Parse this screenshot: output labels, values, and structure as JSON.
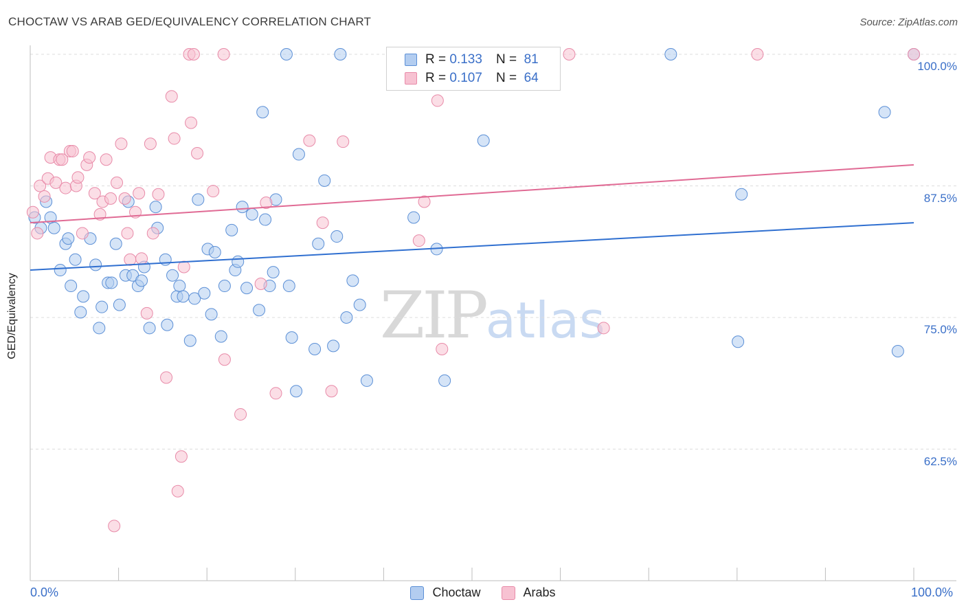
{
  "header": {
    "title": "CHOCTAW VS ARAB GED/EQUIVALENCY CORRELATION CHART",
    "source": "Source: ZipAtlas.com"
  },
  "watermark": {
    "zip": "ZIP",
    "atlas": "atlas"
  },
  "legend": {
    "rows": [
      {
        "r_label": "R =",
        "r_value": "0.133",
        "n_label": "N =",
        "n_value": "81"
      },
      {
        "r_label": "R =",
        "r_value": "0.107",
        "n_label": "N =",
        "n_value": "64"
      }
    ]
  },
  "colors": {
    "choctaw_fill": "#b3cdf0",
    "choctaw_stroke": "#5b8fd6",
    "choctaw_line": "#2f6fd0",
    "arabs_fill": "#f7c2d2",
    "arabs_stroke": "#e88aa8",
    "arabs_line": "#e06a94",
    "tick_text": "#3a6fc8",
    "grid": "#dcdcdc"
  },
  "chart_data": {
    "type": "scatter",
    "title": "CHOCTAW VS ARAB GED/EQUIVALENCY CORRELATION CHART",
    "xlabel": "",
    "ylabel": "GED/Equivalency",
    "xlim": [
      0,
      100
    ],
    "ylim": [
      50,
      102
    ],
    "x_tick_labels": [
      "0.0%",
      "100.0%"
    ],
    "y_ticks": [
      62.5,
      75.0,
      87.5,
      100.0
    ],
    "y_tick_labels": [
      "62.5%",
      "75.0%",
      "87.5%",
      "100.0%"
    ],
    "grid": true,
    "legend_position": "top-center",
    "series": [
      {
        "name": "Choctaw",
        "trend": {
          "x": [
            0,
            100
          ],
          "y": [
            79.5,
            84.0
          ]
        },
        "points": [
          [
            0.5,
            84.5
          ],
          [
            1.2,
            83.5
          ],
          [
            1.8,
            86.0
          ],
          [
            2.3,
            84.5
          ],
          [
            2.7,
            83.5
          ],
          [
            3.4,
            79.5
          ],
          [
            4.0,
            82.0
          ],
          [
            4.3,
            82.5
          ],
          [
            4.6,
            78.0
          ],
          [
            5.1,
            80.5
          ],
          [
            5.7,
            75.5
          ],
          [
            6.0,
            77.0
          ],
          [
            6.8,
            82.5
          ],
          [
            7.4,
            80.0
          ],
          [
            7.8,
            74.0
          ],
          [
            8.1,
            76.0
          ],
          [
            8.8,
            78.3
          ],
          [
            9.2,
            78.3
          ],
          [
            9.7,
            82.0
          ],
          [
            10.1,
            76.2
          ],
          [
            10.8,
            79.0
          ],
          [
            11.1,
            86.0
          ],
          [
            11.6,
            79.0
          ],
          [
            12.2,
            78.0
          ],
          [
            12.6,
            78.5
          ],
          [
            12.9,
            79.8
          ],
          [
            13.5,
            74.0
          ],
          [
            14.2,
            85.5
          ],
          [
            14.4,
            83.5
          ],
          [
            15.3,
            80.5
          ],
          [
            15.5,
            74.3
          ],
          [
            16.1,
            79.0
          ],
          [
            16.6,
            77.0
          ],
          [
            16.9,
            78.0
          ],
          [
            17.3,
            77.0
          ],
          [
            18.1,
            72.8
          ],
          [
            18.6,
            76.8
          ],
          [
            19.0,
            86.2
          ],
          [
            19.7,
            77.3
          ],
          [
            20.1,
            81.5
          ],
          [
            20.5,
            75.3
          ],
          [
            20.9,
            81.2
          ],
          [
            21.6,
            73.2
          ],
          [
            22.0,
            78.0
          ],
          [
            22.8,
            83.3
          ],
          [
            23.2,
            79.5
          ],
          [
            23.5,
            80.3
          ],
          [
            24.0,
            85.5
          ],
          [
            24.5,
            77.8
          ],
          [
            25.1,
            84.8
          ],
          [
            25.9,
            75.7
          ],
          [
            26.3,
            94.5
          ],
          [
            26.6,
            84.3
          ],
          [
            27.1,
            78.0
          ],
          [
            27.5,
            79.3
          ],
          [
            27.8,
            86.2
          ],
          [
            29.0,
            100.0
          ],
          [
            29.3,
            78.0
          ],
          [
            29.6,
            73.1
          ],
          [
            30.1,
            68.0
          ],
          [
            30.4,
            90.5
          ],
          [
            32.2,
            72.0
          ],
          [
            32.6,
            82.0
          ],
          [
            33.3,
            88.0
          ],
          [
            34.3,
            72.3
          ],
          [
            34.7,
            82.7
          ],
          [
            35.1,
            100.0
          ],
          [
            35.8,
            75.0
          ],
          [
            36.5,
            78.5
          ],
          [
            37.3,
            76.2
          ],
          [
            38.1,
            69.0
          ],
          [
            43.4,
            84.5
          ],
          [
            46.0,
            81.5
          ],
          [
            46.9,
            69.0
          ],
          [
            51.3,
            91.8
          ],
          [
            72.5,
            100.0
          ],
          [
            80.1,
            72.7
          ],
          [
            80.5,
            86.7
          ],
          [
            96.7,
            94.5
          ],
          [
            98.2,
            71.8
          ],
          [
            100.0,
            100.0
          ]
        ]
      },
      {
        "name": "Arabs",
        "trend": {
          "x": [
            0,
            100
          ],
          "y": [
            84.0,
            89.5
          ]
        },
        "points": [
          [
            0.3,
            85.0
          ],
          [
            0.8,
            83.0
          ],
          [
            1.1,
            87.5
          ],
          [
            1.6,
            86.5
          ],
          [
            2.0,
            88.2
          ],
          [
            2.3,
            90.2
          ],
          [
            2.9,
            87.8
          ],
          [
            3.3,
            90.0
          ],
          [
            3.6,
            90.0
          ],
          [
            4.0,
            87.3
          ],
          [
            4.5,
            90.8
          ],
          [
            4.8,
            90.8
          ],
          [
            5.2,
            87.5
          ],
          [
            5.4,
            88.3
          ],
          [
            5.9,
            83.0
          ],
          [
            6.4,
            89.5
          ],
          [
            6.7,
            90.2
          ],
          [
            7.3,
            86.8
          ],
          [
            7.9,
            84.8
          ],
          [
            8.2,
            86.0
          ],
          [
            8.6,
            90.0
          ],
          [
            9.1,
            86.3
          ],
          [
            9.5,
            55.2
          ],
          [
            9.8,
            87.8
          ],
          [
            10.3,
            91.5
          ],
          [
            10.7,
            86.3
          ],
          [
            11.0,
            83.0
          ],
          [
            11.3,
            80.5
          ],
          [
            11.9,
            85.0
          ],
          [
            12.3,
            86.8
          ],
          [
            12.6,
            80.6
          ],
          [
            13.2,
            75.4
          ],
          [
            13.6,
            91.5
          ],
          [
            13.9,
            83.0
          ],
          [
            14.5,
            86.7
          ],
          [
            15.4,
            69.3
          ],
          [
            16.0,
            96.0
          ],
          [
            16.3,
            92.0
          ],
          [
            16.7,
            58.5
          ],
          [
            17.1,
            61.8
          ],
          [
            17.4,
            79.8
          ],
          [
            18.0,
            100.0
          ],
          [
            18.2,
            93.5
          ],
          [
            18.5,
            100.0
          ],
          [
            18.9,
            90.6
          ],
          [
            20.7,
            87.0
          ],
          [
            21.9,
            100.0
          ],
          [
            22.0,
            71.0
          ],
          [
            23.8,
            65.8
          ],
          [
            26.1,
            78.2
          ],
          [
            26.7,
            85.9
          ],
          [
            27.8,
            67.8
          ],
          [
            31.6,
            91.8
          ],
          [
            33.1,
            84.0
          ],
          [
            34.1,
            68.0
          ],
          [
            35.4,
            91.7
          ],
          [
            44.0,
            82.3
          ],
          [
            44.6,
            86.0
          ],
          [
            46.1,
            95.6
          ],
          [
            46.6,
            72.0
          ],
          [
            61.0,
            100.0
          ],
          [
            64.9,
            74.0
          ],
          [
            82.3,
            100.0
          ],
          [
            100.0,
            100.0
          ]
        ]
      }
    ]
  },
  "axis": {
    "x_left_label": "0.0%",
    "x_right_label": "100.0%"
  },
  "bottom_legend": {
    "items": [
      {
        "label": "Choctaw"
      },
      {
        "label": "Arabs"
      }
    ]
  }
}
